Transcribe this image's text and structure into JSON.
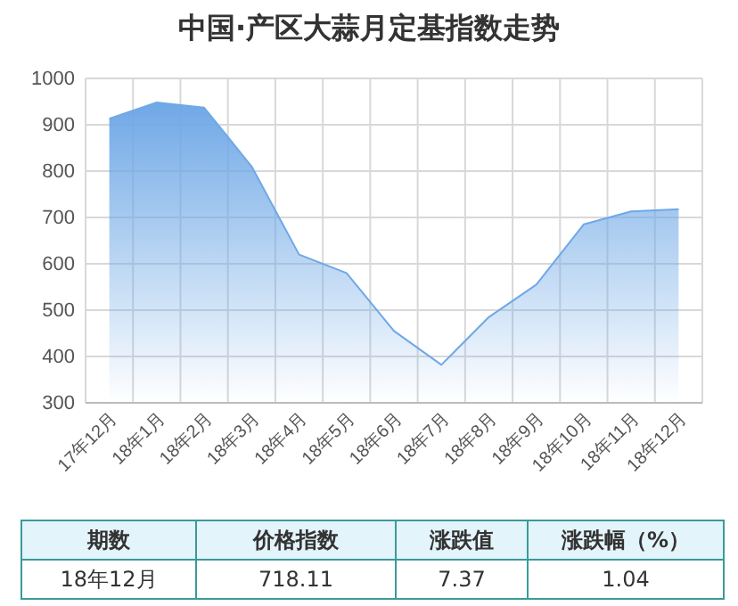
{
  "chart_data": {
    "type": "area",
    "title": "中国·产区大蒜月定基指数走势",
    "categories": [
      "17年12月",
      "18年1月",
      "18年2月",
      "18年3月",
      "18年4月",
      "18年5月",
      "18年6月",
      "18年7月",
      "18年8月",
      "18年9月",
      "18年10月",
      "18年11月",
      "18年12月"
    ],
    "series": [
      {
        "color": "#6fa8e6",
        "values": [
          913,
          948,
          937,
          810,
          620,
          580,
          455,
          382,
          485,
          555,
          685,
          713,
          718
        ]
      }
    ],
    "ylim": [
      300,
      1000
    ],
    "yticks": [
      300,
      400,
      500,
      600,
      700,
      800,
      900,
      1000
    ],
    "grid": true,
    "annotations": [
      "期数",
      "价格指数",
      "涨跌值",
      "涨跌幅（%）",
      "18年12月",
      "718.11",
      "7.37",
      "1.04"
    ]
  }
}
